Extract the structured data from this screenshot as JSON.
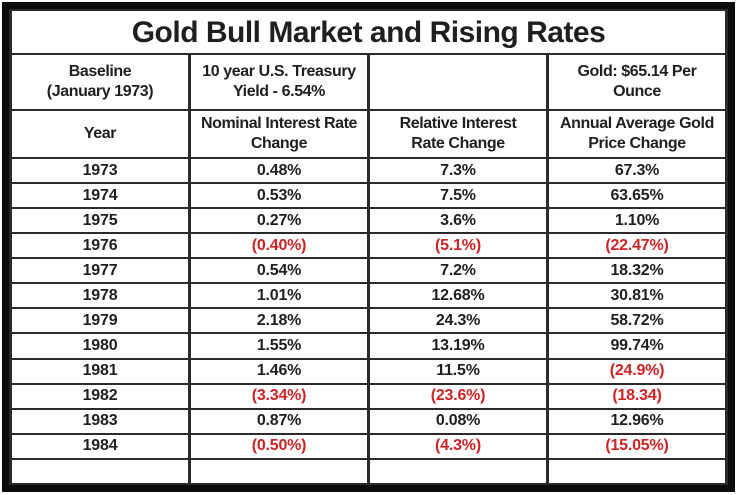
{
  "title": "Gold Bull Market and Rising Rates",
  "colors": {
    "negative_value_red": "#cc2424",
    "text_black": "#1f1f1f",
    "inner_border": "#2a2a2a",
    "outer_frame": "#0c0c0c"
  },
  "header_row_1": {
    "baseline": "Baseline\n(January 1973)",
    "treasury": "10 year U.S. Treasury\nYield - 6.54%",
    "blank": "",
    "gold": "Gold: $65.14 Per\nOunce"
  },
  "header_row_2": {
    "year": "Year",
    "nominal": "Nominal Interest Rate\nChange",
    "relative": "Relative Interest\nRate Change",
    "gold": "Annual Average Gold\nPrice Change"
  },
  "rows": [
    {
      "year": "1973",
      "nominal": "0.48%",
      "relative": "7.3%",
      "gold": "67.3%"
    },
    {
      "year": "1974",
      "nominal": "0.53%",
      "relative": "7.5%",
      "gold": "63.65%"
    },
    {
      "year": "1975",
      "nominal": "0.27%",
      "relative": "3.6%",
      "gold": "1.10%"
    },
    {
      "year": "1976",
      "nominal": "(0.40%)",
      "relative": "(5.1%)",
      "gold": "(22.47%)"
    },
    {
      "year": "1977",
      "nominal": "0.54%",
      "relative": "7.2%",
      "gold": "18.32%"
    },
    {
      "year": "1978",
      "nominal": "1.01%",
      "relative": "12.68%",
      "gold": "30.81%"
    },
    {
      "year": "1979",
      "nominal": "2.18%",
      "relative": "24.3%",
      "gold": "58.72%"
    },
    {
      "year": "1980",
      "nominal": "1.55%",
      "relative": "13.19%",
      "gold": "99.74%"
    },
    {
      "year": "1981",
      "nominal": "1.46%",
      "relative": "11.5%",
      "gold": "(24.9%)"
    },
    {
      "year": "1982",
      "nominal": "(3.34%)",
      "relative": "(23.6%)",
      "gold": "(18.34)"
    },
    {
      "year": "1983",
      "nominal": "0.87%",
      "relative": "0.08%",
      "gold": "12.96%"
    },
    {
      "year": "1984",
      "nominal": "(0.50%)",
      "relative": "(4.3%)",
      "gold": "(15.05%)"
    },
    {
      "year": "",
      "nominal": "",
      "relative": "",
      "gold": ""
    }
  ],
  "chart_data": {
    "type": "table",
    "title": "Gold Bull Market and Rising Rates",
    "baseline_label": "Baseline (January 1973)",
    "baseline_treasury_yield": "10 year U.S. Treasury Yield - 6.54%",
    "baseline_gold_price": "Gold: $65.14 Per Ounce",
    "columns": [
      "Year",
      "Nominal Interest Rate Change",
      "Relative Interest Rate Change",
      "Annual Average Gold Price Change"
    ],
    "years": [
      1973,
      1974,
      1975,
      1976,
      1977,
      1978,
      1979,
      1980,
      1981,
      1982,
      1983,
      1984
    ],
    "series": [
      {
        "name": "Nominal Interest Rate Change (%)",
        "values": [
          0.48,
          0.53,
          0.27,
          -0.4,
          0.54,
          1.01,
          2.18,
          1.55,
          1.46,
          -3.34,
          0.87,
          -0.5
        ]
      },
      {
        "name": "Relative Interest Rate Change (%)",
        "values": [
          7.3,
          7.5,
          3.6,
          -5.1,
          7.2,
          12.68,
          24.3,
          13.19,
          11.5,
          -23.6,
          0.08,
          -4.3
        ]
      },
      {
        "name": "Annual Average Gold Price Change (%)",
        "values": [
          67.3,
          63.65,
          1.1,
          -22.47,
          18.32,
          30.81,
          58.72,
          99.74,
          -24.9,
          -18.34,
          12.96,
          -15.05
        ]
      }
    ],
    "notes": "Negative values are displayed in parentheses and colored red; 1982 gold value shown as (18.34) without percent sign; table ends with one empty row."
  }
}
